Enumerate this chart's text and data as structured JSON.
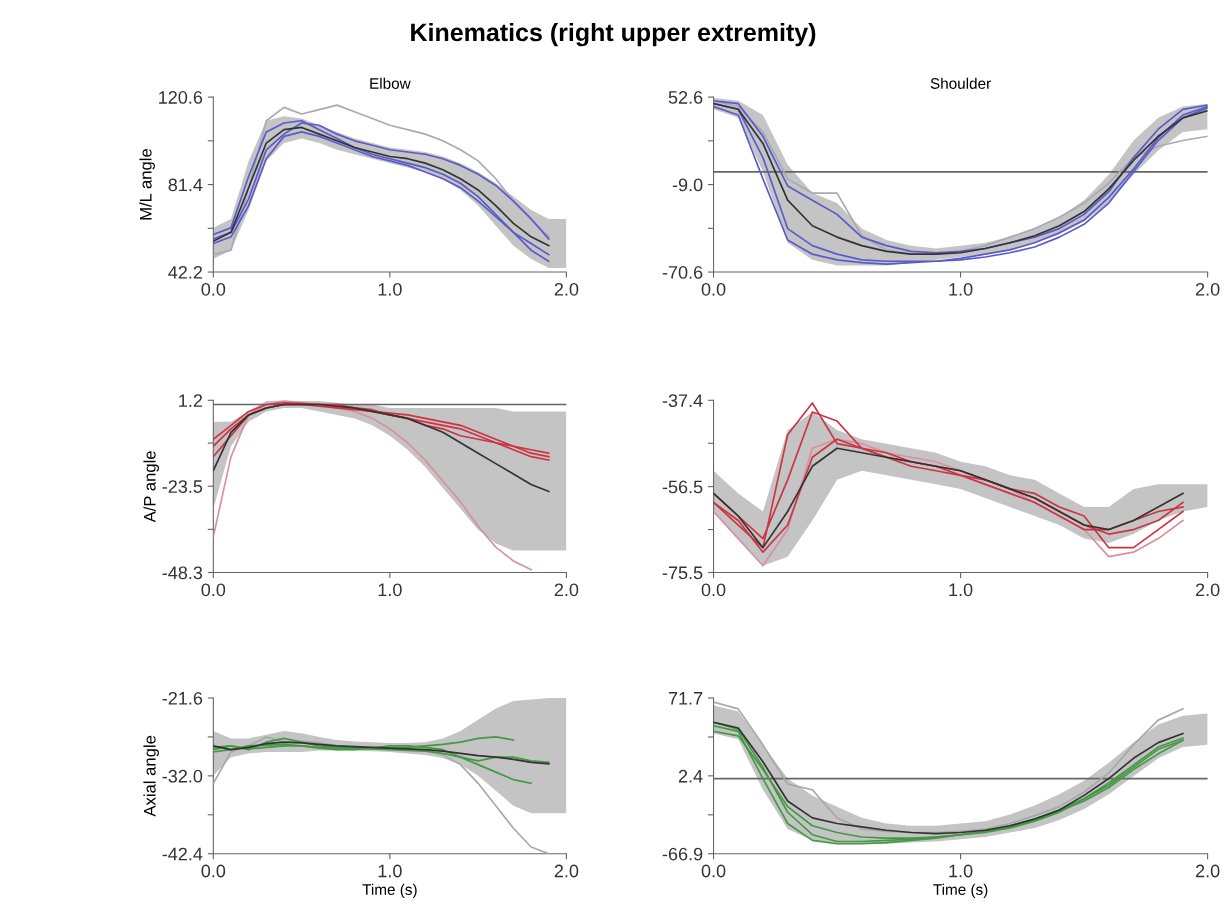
{
  "chart_data": [
    {
      "type": "line",
      "title": "Kinematics (right upper extremity)",
      "subtitle": "Elbow",
      "ylabel": "M/L angle",
      "x": [
        0,
        0.1,
        0.2,
        0.3,
        0.4,
        0.5,
        0.6,
        0.7,
        0.8,
        0.9,
        1.0,
        1.1,
        1.2,
        1.3,
        1.4,
        1.5,
        1.6,
        1.7,
        1.8,
        1.9,
        2.0
      ],
      "xlim": [
        0,
        2
      ],
      "xticks": [
        {
          "value": 0,
          "label": "0.0"
        },
        {
          "value": 1,
          "label": "1.0"
        },
        {
          "value": 2,
          "label": "2.0"
        }
      ],
      "ylim": [
        42.2,
        120.6
      ],
      "yticks": [
        {
          "value": 42.2,
          "label": "42.2"
        },
        {
          "value": 61.8,
          "label": null
        },
        {
          "value": 81.4,
          "label": "81.4"
        },
        {
          "value": 101.0,
          "label": null
        },
        {
          "value": 120.6,
          "label": "120.6"
        }
      ],
      "series": [
        {
          "color": "#a8a8b8",
          "values": [
            50,
            52,
            80,
            110,
            116,
            113,
            115,
            117,
            114,
            111,
            108,
            106,
            104,
            101,
            97,
            92,
            84,
            74,
            66,
            58,
            null
          ]
        },
        {
          "color": "#5a5acc",
          "values": [
            59,
            62,
            85,
            105,
            109,
            110,
            106,
            102,
            98,
            95,
            93,
            91,
            89,
            86,
            82,
            76,
            68,
            60,
            52,
            47,
            null
          ]
        },
        {
          "color": "#5a5acc",
          "values": [
            57,
            60,
            75,
            97,
            104,
            109,
            108,
            104,
            101,
            99,
            97,
            96,
            95,
            93,
            90,
            86,
            81,
            74,
            66,
            57,
            null
          ]
        },
        {
          "color": "#5a5acc",
          "values": [
            55,
            58,
            72,
            93,
            103,
            105,
            103,
            100,
            97,
            94,
            92,
            90,
            87,
            84,
            80,
            74,
            67,
            60,
            55,
            50,
            null
          ]
        },
        {
          "color": "#333333",
          "values": [
            56,
            60,
            80,
            100,
            106,
            107,
            104,
            101,
            98,
            96,
            94,
            93,
            91,
            88,
            84,
            79,
            72,
            64,
            58,
            54,
            null
          ],
          "lower": [
            48,
            52,
            70,
            92,
            100,
            102,
            100,
            97,
            95,
            93,
            91,
            89,
            87,
            84,
            79,
            72,
            63,
            54,
            48,
            44,
            44
          ],
          "upper": [
            62,
            66,
            92,
            110,
            112,
            111,
            108,
            105,
            102,
            100,
            98,
            97,
            96,
            94,
            91,
            87,
            82,
            76,
            70,
            66,
            66
          ]
        }
      ]
    },
    {
      "type": "line",
      "subtitle": "Shoulder",
      "x": [
        0,
        0.1,
        0.2,
        0.3,
        0.4,
        0.5,
        0.6,
        0.7,
        0.8,
        0.9,
        1.0,
        1.1,
        1.2,
        1.3,
        1.4,
        1.5,
        1.6,
        1.7,
        1.8,
        1.9,
        2.0
      ],
      "xlim": [
        0,
        2
      ],
      "xticks": [
        {
          "value": 0,
          "label": "0.0"
        },
        {
          "value": 1,
          "label": "1.0"
        },
        {
          "value": 2,
          "label": "2.0"
        }
      ],
      "ylim": [
        -70.6,
        52.6
      ],
      "yticks": [
        {
          "value": -70.6,
          "label": "-70.6"
        },
        {
          "value": -39.8,
          "label": null
        },
        {
          "value": -9.0,
          "label": "-9.0"
        },
        {
          "value": 21.8,
          "label": null
        },
        {
          "value": 52.6,
          "label": "52.6"
        }
      ],
      "ref_lines": [
        {
          "axis": "y",
          "value": 0,
          "color": "#666666"
        }
      ],
      "series": [
        {
          "color": "#a8a8b8",
          "values": [
            50,
            46,
            28,
            -5,
            -15,
            -15,
            -45,
            -55,
            -58,
            -58,
            -56,
            -52,
            -46,
            -40,
            -32,
            -22,
            -8,
            10,
            18,
            22,
            25
          ]
        },
        {
          "color": "#5a5acc",
          "values": [
            50,
            48,
            25,
            -10,
            -20,
            -30,
            -46,
            -52,
            -56,
            -57,
            -56,
            -54,
            -50,
            -46,
            -40,
            -30,
            -14,
            10,
            30,
            44,
            47
          ]
        },
        {
          "color": "#5a5acc",
          "values": [
            46,
            40,
            -5,
            -48,
            -58,
            -62,
            -64,
            -65,
            -64,
            -63,
            -62,
            -60,
            -57,
            -53,
            -46,
            -37,
            -22,
            0,
            22,
            38,
            45
          ]
        },
        {
          "color": "#5a5acc",
          "values": [
            48,
            44,
            10,
            -40,
            -52,
            -58,
            -62,
            -63,
            -63,
            -63,
            -61,
            -58,
            -55,
            -50,
            -43,
            -34,
            -18,
            2,
            24,
            40,
            46
          ]
        },
        {
          "color": "#333333",
          "values": [
            48,
            44,
            20,
            -20,
            -38,
            -46,
            -52,
            -56,
            -58,
            -58,
            -57,
            -54,
            -50,
            -45,
            -38,
            -28,
            -12,
            8,
            25,
            38,
            43
          ],
          "lower": [
            44,
            38,
            0,
            -50,
            -62,
            -66,
            -66,
            -66,
            -64,
            -62,
            -60,
            -58,
            -55,
            -50,
            -44,
            -35,
            -22,
            -2,
            15,
            28,
            30
          ],
          "upper": [
            52,
            50,
            40,
            5,
            -15,
            -22,
            -40,
            -48,
            -52,
            -54,
            -52,
            -50,
            -46,
            -40,
            -32,
            -20,
            -2,
            22,
            38,
            46,
            48
          ]
        }
      ]
    },
    {
      "type": "line",
      "ylabel": "A/P angle",
      "x": [
        0,
        0.1,
        0.2,
        0.3,
        0.4,
        0.5,
        0.6,
        0.7,
        0.8,
        0.9,
        1.0,
        1.1,
        1.2,
        1.3,
        1.4,
        1.5,
        1.6,
        1.7,
        1.8,
        1.9,
        2.0
      ],
      "xlim": [
        0,
        2
      ],
      "xticks": [
        {
          "value": 0,
          "label": "0.0"
        },
        {
          "value": 1,
          "label": "1.0"
        },
        {
          "value": 2,
          "label": "2.0"
        }
      ],
      "ylim": [
        -48.3,
        1.2
      ],
      "yticks": [
        {
          "value": -48.3,
          "label": "-48.3"
        },
        {
          "value": -35.9,
          "label": null
        },
        {
          "value": -23.5,
          "label": "-23.5"
        },
        {
          "value": -11.1,
          "label": null
        },
        {
          "value": 1.2,
          "label": "1.2"
        }
      ],
      "ref_lines": [
        {
          "axis": "y",
          "value": 0,
          "color": "#666666"
        }
      ],
      "series": [
        {
          "color": "#d890a0",
          "values": [
            -38,
            -15,
            -3,
            0,
            1,
            0.5,
            0,
            -1,
            -2,
            -4,
            -7,
            -11,
            -16,
            -22,
            -28,
            -35,
            -41,
            -45,
            -47.5,
            null,
            null
          ]
        },
        {
          "color": "#cc3344",
          "values": [
            -12,
            -7,
            -3,
            -1,
            0,
            0,
            0,
            -0.5,
            -1,
            -1.5,
            -3,
            -4,
            -6,
            -7,
            -9,
            -10,
            -11,
            -12,
            -13,
            -14,
            null
          ]
        },
        {
          "color": "#cc3344",
          "values": [
            -10,
            -6,
            -2,
            0,
            0.5,
            0.3,
            0,
            0,
            -1,
            -2,
            -2.5,
            -3,
            -4,
            -5,
            -6,
            -8,
            -10,
            -12,
            -14,
            -15,
            null
          ]
        },
        {
          "color": "#cc3344",
          "values": [
            -15,
            -9,
            -3,
            -1,
            0,
            0,
            -0.5,
            -1,
            -1.5,
            -2,
            -3,
            -4,
            -5,
            -6,
            -7,
            -9,
            -11,
            -13,
            -15,
            -16,
            null
          ]
        },
        {
          "color": "#333333",
          "values": [
            -19,
            -8,
            -3,
            -1,
            0,
            0,
            0,
            -0.5,
            -1,
            -2,
            -3,
            -4,
            -6,
            -8,
            -11,
            -14,
            -17,
            -20,
            -23,
            -25,
            null
          ],
          "lower": [
            -30,
            -12,
            -5,
            -2,
            -1,
            -1,
            -2,
            -3,
            -4,
            -6,
            -9,
            -13,
            -18,
            -24,
            -30,
            -36,
            -40,
            -42,
            -42,
            -42,
            -42
          ],
          "upper": [
            -5,
            -5,
            -2,
            1,
            1.2,
            1,
            1,
            0.5,
            0,
            0,
            -1,
            -1,
            -1,
            -1,
            -1,
            -1,
            -1,
            -2,
            -2,
            -2,
            -2
          ]
        }
      ]
    },
    {
      "type": "line",
      "x": [
        0,
        0.1,
        0.2,
        0.3,
        0.4,
        0.5,
        0.6,
        0.7,
        0.8,
        0.9,
        1.0,
        1.1,
        1.2,
        1.3,
        1.4,
        1.5,
        1.6,
        1.7,
        1.8,
        1.9,
        2.0
      ],
      "xlim": [
        0,
        2
      ],
      "xticks": [
        {
          "value": 0,
          "label": "0.0"
        },
        {
          "value": 1,
          "label": "1.0"
        },
        {
          "value": 2,
          "label": "2.0"
        }
      ],
      "ylim": [
        -75.5,
        -37.4
      ],
      "yticks": [
        {
          "value": -75.5,
          "label": "-75.5"
        },
        {
          "value": -66.0,
          "label": null
        },
        {
          "value": -56.5,
          "label": "-56.5"
        },
        {
          "value": -46.9,
          "label": null
        },
        {
          "value": -37.4,
          "label": "-37.4"
        }
      ],
      "series": [
        {
          "color": "#d890a0",
          "values": [
            -62,
            -68,
            -74,
            -66,
            -48,
            -46,
            -47,
            -49,
            -50,
            -51,
            -53,
            -55,
            -57,
            -60,
            -63,
            -66,
            -72,
            -71,
            -68,
            -64,
            null
          ]
        },
        {
          "color": "#cc3344",
          "values": [
            -60,
            -65,
            -70,
            -45,
            -38,
            -47,
            -48,
            -50,
            -52,
            -53,
            -54,
            -55,
            -57,
            -59,
            -62,
            -65,
            -67,
            -66,
            -64,
            -60,
            null
          ]
        },
        {
          "color": "#cc3344",
          "values": [
            -58,
            -63,
            -68,
            -55,
            -40,
            -42,
            -48,
            -50,
            -51,
            -52,
            -54,
            -56,
            -58,
            -60,
            -63,
            -66,
            -66,
            -64,
            -62,
            -61,
            null
          ]
        },
        {
          "color": "#cc3344",
          "values": [
            -60,
            -64,
            -71,
            -65,
            -50,
            -46,
            -48,
            -49,
            -51,
            -52,
            -53,
            -55,
            -57,
            -58,
            -61,
            -63,
            -70,
            -70,
            -66,
            -62,
            null
          ]
        },
        {
          "color": "#333333",
          "values": [
            -58,
            -63,
            -70,
            -62,
            -52,
            -48,
            -49,
            -50,
            -51,
            -52,
            -53,
            -55,
            -57,
            -59,
            -62,
            -65,
            -66,
            -64,
            -61,
            -58,
            null
          ],
          "lower": [
            -62,
            -68,
            -74,
            -72,
            -64,
            -55,
            -53,
            -54,
            -55,
            -56,
            -57,
            -59,
            -61,
            -63,
            -65,
            -68,
            -69,
            -67,
            -64,
            -62,
            -61
          ],
          "upper": [
            -53,
            -58,
            -62,
            -44,
            -40,
            -44,
            -46,
            -47,
            -48,
            -49,
            -51,
            -52,
            -54,
            -55,
            -58,
            -61,
            -61,
            -57,
            -56,
            -56,
            -56
          ]
        }
      ]
    },
    {
      "type": "line",
      "ylabel": "Axial angle",
      "xlabel": "Time (s)",
      "x": [
        0,
        0.1,
        0.2,
        0.3,
        0.4,
        0.5,
        0.6,
        0.7,
        0.8,
        0.9,
        1.0,
        1.1,
        1.2,
        1.3,
        1.4,
        1.5,
        1.6,
        1.7,
        1.8,
        1.9,
        2.0
      ],
      "xlim": [
        0,
        2
      ],
      "xticks": [
        {
          "value": 0,
          "label": "0.0"
        },
        {
          "value": 1,
          "label": "1.0"
        },
        {
          "value": 2,
          "label": "2.0"
        }
      ],
      "ylim": [
        -42.4,
        -21.6
      ],
      "yticks": [
        {
          "value": -42.4,
          "label": "-42.4"
        },
        {
          "value": -37.2,
          "label": null
        },
        {
          "value": -32.0,
          "label": "-32.0"
        },
        {
          "value": -26.8,
          "label": null
        },
        {
          "value": -21.6,
          "label": "-21.6"
        }
      ],
      "series": [
        {
          "color": "#a8a8a8",
          "values": [
            -33,
            -28.8,
            -28,
            -26.8,
            -27.5,
            -27.4,
            -27.6,
            -28,
            -28.2,
            -28.4,
            -28.2,
            -28.3,
            -28.6,
            -29.2,
            -30.5,
            -33,
            -36,
            -39,
            -41.5,
            -42.4,
            null
          ]
        },
        {
          "color": "#449944",
          "values": [
            -28.5,
            -28,
            -28.5,
            -27.5,
            -27,
            -27.5,
            -28,
            -28.2,
            -28.3,
            -28.3,
            -28.4,
            -28.2,
            -28,
            -27.8,
            -27.5,
            -27,
            -26.8,
            -27.2,
            null,
            null,
            null
          ]
        },
        {
          "color": "#449944",
          "values": [
            -28.8,
            -28.5,
            -28,
            -27.9,
            -27.8,
            -28,
            -28.2,
            -28.3,
            -28.3,
            -28.4,
            -28.5,
            -28.6,
            -28.7,
            -29,
            -29.5,
            -30,
            -29.5,
            -29.5,
            -30,
            -30.2,
            null
          ]
        },
        {
          "color": "#449944",
          "values": [
            -28.2,
            -28,
            -28.4,
            -28.2,
            -28,
            -28,
            -28.3,
            -28.5,
            -28.5,
            -28.3,
            -28,
            -28,
            -28.2,
            -28.5,
            -29.5,
            -30.5,
            -31.5,
            -32.5,
            -33,
            null,
            null
          ]
        },
        {
          "color": "#333333",
          "values": [
            -28,
            -28.5,
            -28.2,
            -27.7,
            -27.5,
            -27.6,
            -27.8,
            -28,
            -28.1,
            -28.2,
            -28.3,
            -28.4,
            -28.5,
            -28.7,
            -29,
            -29.3,
            -29.5,
            -29.8,
            -30.2,
            -30.4,
            null
          ],
          "lower": [
            -32,
            -29.5,
            -29,
            -28.8,
            -28.8,
            -28.8,
            -28.6,
            -28.6,
            -28.6,
            -28.7,
            -28.8,
            -29,
            -29.2,
            -29.6,
            -30.5,
            -32,
            -34,
            -36,
            -37,
            -37,
            -37
          ],
          "upper": [
            -26,
            -27,
            -27,
            -26.5,
            -26,
            -26.3,
            -26.8,
            -27.2,
            -27.4,
            -27.5,
            -27.6,
            -27.6,
            -27.5,
            -27,
            -26,
            -24.5,
            -23,
            -22,
            -21.8,
            -21.6,
            -21.6
          ]
        }
      ]
    },
    {
      "type": "line",
      "xlabel": "Time (s)",
      "x": [
        0,
        0.1,
        0.2,
        0.3,
        0.4,
        0.5,
        0.6,
        0.7,
        0.8,
        0.9,
        1.0,
        1.1,
        1.2,
        1.3,
        1.4,
        1.5,
        1.6,
        1.7,
        1.8,
        1.9,
        2.0
      ],
      "xlim": [
        0,
        2
      ],
      "xticks": [
        {
          "value": 0,
          "label": "0.0"
        },
        {
          "value": 1,
          "label": "1.0"
        },
        {
          "value": 2,
          "label": "2.0"
        }
      ],
      "ylim": [
        -66.9,
        71.7
      ],
      "yticks": [
        {
          "value": -66.9,
          "label": "-66.9"
        },
        {
          "value": -32.3,
          "label": null
        },
        {
          "value": 2.4,
          "label": "2.4"
        },
        {
          "value": 37.0,
          "label": null
        },
        {
          "value": 71.7,
          "label": "71.7"
        }
      ],
      "ref_lines": [
        {
          "axis": "y",
          "value": 0,
          "color": "#666666"
        }
      ],
      "series": [
        {
          "color": "#a8a8a8",
          "values": [
            68,
            62,
            30,
            -5,
            -10,
            -35,
            -45,
            -47,
            -48,
            -48,
            -47,
            -45,
            -40,
            -33,
            -25,
            -12,
            5,
            30,
            52,
            62,
            null
          ]
        },
        {
          "color": "#449944",
          "values": [
            42,
            38,
            8,
            -25,
            -42,
            -48,
            -52,
            -53,
            -53,
            -52,
            -50,
            -48,
            -44,
            -38,
            -30,
            -18,
            -4,
            12,
            28,
            36,
            null
          ]
        },
        {
          "color": "#449944",
          "values": [
            47,
            42,
            0,
            -40,
            -55,
            -58,
            -58,
            -57,
            -55,
            -53,
            -50,
            -47,
            -42,
            -36,
            -28,
            -18,
            -6,
            10,
            26,
            34,
            null
          ]
        },
        {
          "color": "#449944",
          "values": [
            50,
            44,
            10,
            -30,
            -50,
            -56,
            -56,
            -55,
            -54,
            -52,
            -50,
            -47,
            -43,
            -37,
            -29,
            -20,
            -8,
            8,
            22,
            34,
            null
          ]
        },
        {
          "color": "#333333",
          "values": [
            50,
            45,
            15,
            -20,
            -35,
            -40,
            -43,
            -46,
            -48,
            -49,
            -48,
            -46,
            -42,
            -36,
            -28,
            -15,
            0,
            18,
            32,
            40,
            null
          ],
          "lower": [
            40,
            35,
            -10,
            -45,
            -55,
            -58,
            -58,
            -58,
            -57,
            -56,
            -54,
            -52,
            -48,
            -44,
            -37,
            -27,
            -14,
            2,
            18,
            28,
            30
          ],
          "upper": [
            65,
            60,
            30,
            0,
            -15,
            -25,
            -35,
            -40,
            -42,
            -42,
            -40,
            -38,
            -32,
            -24,
            -14,
            -2,
            14,
            32,
            48,
            56,
            58
          ]
        }
      ]
    }
  ]
}
